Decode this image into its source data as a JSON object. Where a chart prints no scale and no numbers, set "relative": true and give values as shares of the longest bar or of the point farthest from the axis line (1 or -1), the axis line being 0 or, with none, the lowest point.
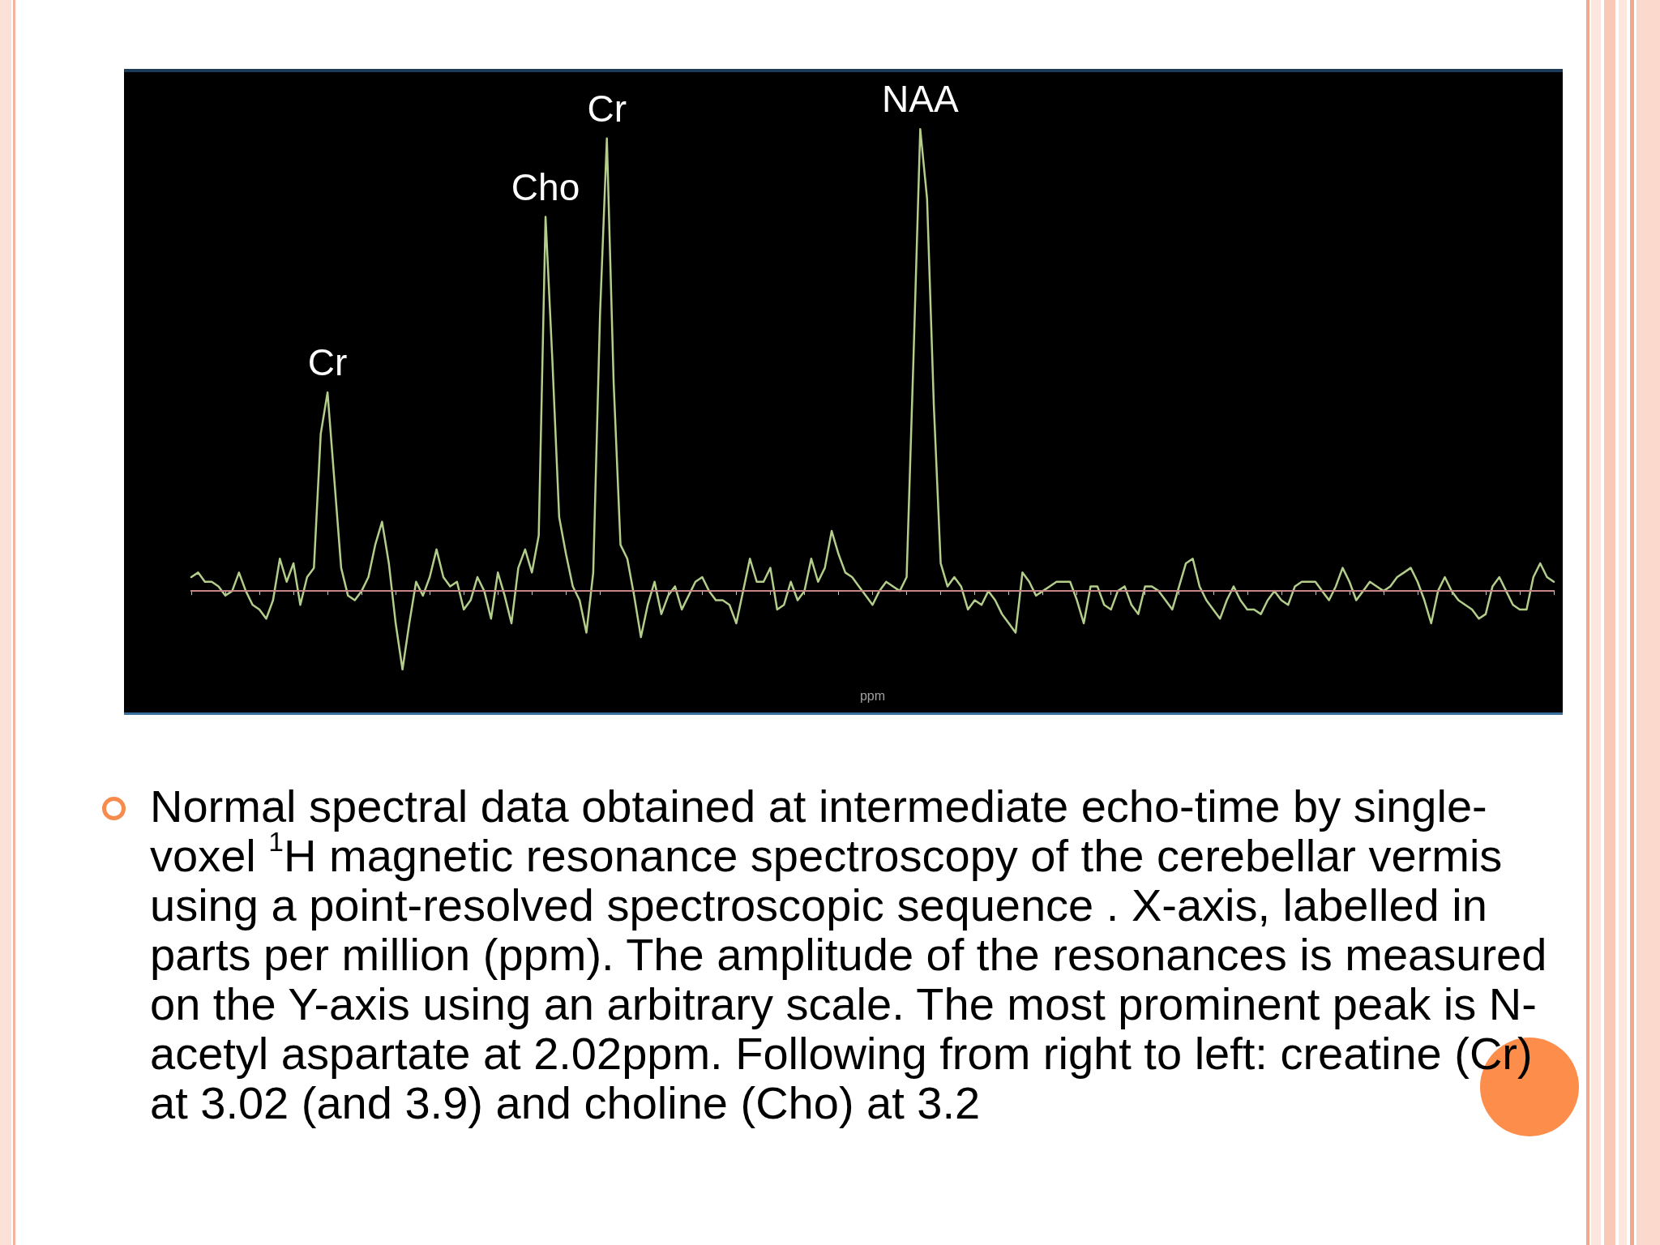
{
  "chart_data": {
    "type": "line",
    "relative": true,
    "xlabel": "ppm",
    "marker": "none",
    "line_style": "solid",
    "categories": [
      null,
      null,
      null,
      null,
      null,
      null,
      null,
      null,
      null,
      null,
      null,
      null,
      null,
      null,
      null,
      null,
      null,
      null,
      null,
      null,
      null,
      null,
      null,
      null,
      null,
      null,
      null,
      null,
      null,
      null,
      null,
      null,
      null,
      null,
      null,
      null,
      null,
      null,
      null,
      null,
      null,
      null,
      null,
      null,
      null,
      null,
      null,
      null,
      null,
      null,
      null,
      null,
      null,
      null,
      null,
      null,
      null,
      null,
      null,
      null,
      null,
      null,
      null,
      null,
      null,
      null,
      null,
      null,
      null,
      null,
      null,
      null,
      null,
      null,
      null,
      null,
      null,
      null,
      null,
      null,
      null,
      null,
      null,
      null,
      null,
      null,
      null,
      null,
      null,
      null,
      null,
      null,
      null,
      null,
      null,
      null,
      null,
      null,
      null,
      null,
      null,
      null,
      null,
      null,
      null,
      null,
      null,
      null,
      null,
      null,
      null,
      null,
      null,
      null,
      null,
      null,
      null,
      null,
      null,
      null,
      null,
      null,
      null,
      null,
      null,
      null,
      null,
      null,
      null,
      null,
      null,
      null,
      null,
      null,
      null,
      null,
      null,
      null,
      null,
      null,
      null,
      null,
      null,
      null,
      null,
      null,
      null,
      null,
      null,
      null,
      null,
      null,
      null,
      null,
      null,
      null,
      null,
      null,
      null,
      null,
      null,
      null,
      null,
      null,
      null,
      null,
      null,
      null,
      null,
      null,
      null,
      null,
      null,
      null,
      null,
      null,
      null,
      null,
      null,
      null,
      null,
      null,
      null,
      null,
      null,
      null,
      null,
      null,
      null,
      null,
      null,
      null,
      null,
      null,
      null,
      null,
      null,
      null,
      null,
      null,
      null
    ],
    "series": [
      {
        "color": "#b3cd8a",
        "values": [
          0.03,
          0.04,
          0.02,
          0.02,
          0.01,
          -0.01,
          0,
          0.04,
          0,
          -0.03,
          -0.04,
          -0.06,
          -0.02,
          0.07,
          0.02,
          0.06,
          -0.03,
          0.03,
          0.05,
          0.34,
          0.43,
          0.24,
          0.05,
          -0.01,
          -0.02,
          0,
          0.03,
          0.1,
          0.15,
          0.06,
          -0.07,
          -0.17,
          -0.07,
          0.02,
          -0.01,
          0.03,
          0.09,
          0.03,
          0.01,
          0.02,
          -0.04,
          -0.02,
          0.03,
          0,
          -0.06,
          0.04,
          -0.01,
          -0.07,
          0.05,
          0.09,
          0.04,
          0.12,
          0.81,
          0.5,
          0.16,
          0.08,
          0.01,
          -0.02,
          -0.09,
          0.04,
          0.6,
          0.98,
          0.45,
          0.1,
          0.07,
          -0.01,
          -0.1,
          -0.03,
          0.02,
          -0.05,
          -0.01,
          0.01,
          -0.04,
          -0.01,
          0.02,
          0.03,
          0,
          -0.02,
          -0.02,
          -0.03,
          -0.07,
          0,
          0.07,
          0.02,
          0.02,
          0.05,
          -0.04,
          -0.03,
          0.02,
          -0.02,
          0,
          0.07,
          0.02,
          0.05,
          0.13,
          0.08,
          0.04,
          0.03,
          0.01,
          -0.01,
          -0.03,
          0,
          0.02,
          0.01,
          0,
          0.03,
          0.5,
          1,
          0.85,
          0.4,
          0.06,
          0.01,
          0.03,
          0.01,
          -0.04,
          -0.02,
          -0.03,
          0,
          -0.02,
          -0.05,
          -0.07,
          -0.09,
          0.04,
          0.02,
          -0.01,
          0,
          0.01,
          0.02,
          0.02,
          0.02,
          -0.02,
          -0.07,
          0.01,
          0.01,
          -0.03,
          -0.04,
          0,
          0.01,
          -0.03,
          -0.05,
          0.01,
          0.01,
          0,
          -0.02,
          -0.04,
          0.01,
          0.06,
          0.07,
          0.01,
          -0.02,
          -0.04,
          -0.06,
          -0.02,
          0.01,
          -0.02,
          -0.04,
          -0.04,
          -0.05,
          -0.02,
          0,
          -0.02,
          -0.03,
          0.01,
          0.02,
          0.02,
          0.02,
          0,
          -0.02,
          0.01,
          0.05,
          0.02,
          -0.02,
          0,
          0.02,
          0.01,
          0,
          0.01,
          0.03,
          0.04,
          0.05,
          0.02,
          -0.02,
          -0.07,
          0,
          0.03,
          0,
          -0.02,
          -0.03,
          -0.04,
          -0.06,
          -0.05,
          0.01,
          0.03,
          0,
          -0.03,
          -0.04,
          -0.04,
          0.03,
          0.06,
          0.03,
          0.02
        ]
      }
    ],
    "ref_lines": [
      {
        "axis": "y",
        "value": 0,
        "color": "#c78585"
      }
    ],
    "annotations": [
      {
        "text": "Cr",
        "y": 0.43
      },
      {
        "text": "Cho",
        "y": 0.81
      },
      {
        "text": "Cr",
        "y": 0.98
      },
      {
        "text": "NAA",
        "y": 1
      },
      "Normal spectral data obtained at intermediate echo-time by single-voxel $^{1}$H magnetic resonance spectroscopy of the cerebellar vermis using a point-resolved spectroscopic sequence . X-axis, labelled in parts per million (ppm). The amplitude of the resonances is measured on the Y-axis using an arbitrary scale. The most prominent peak is N-acetyl aspartate at 2.02ppm. Following from right to left: creatine (Cr) at 3.02 (and 3.9) and choline (Cho) at 3.2"
    ]
  }
}
